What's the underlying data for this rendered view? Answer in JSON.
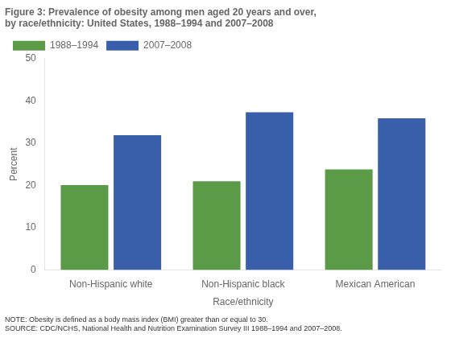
{
  "chart_data": {
    "type": "bar",
    "title": [
      "Figure 3: Prevalence of obesity among men aged 20 years and over,",
      "by race/ethnicity: United States, 1988–1994 and 2007–2008"
    ],
    "annotations": [
      "NOTE: Obesity is defined as a body mass index (BMI) greater than or equal to 30.",
      "SOURCE: CDC/NCHS, National Health and Nutrition Examination Survey III 1988–1994 and 2007–2008."
    ],
    "categories": [
      "Non-Hispanic white",
      "Non-Hispanic black",
      "Mexican American"
    ],
    "series": [
      {
        "name": "1988–1994",
        "color": "#5b9a47",
        "values": [
          20.1,
          21.0,
          23.8
        ]
      },
      {
        "name": "2007–2008",
        "color": "#3a5faa",
        "values": [
          31.9,
          37.3,
          35.9
        ]
      }
    ],
    "xlabel": "Race/ethnicity",
    "ylabel": "Percent",
    "ylim": [
      0,
      50
    ],
    "yticks": [
      0,
      10,
      20,
      30,
      40,
      50
    ],
    "grid": false,
    "legend": "upper left"
  }
}
